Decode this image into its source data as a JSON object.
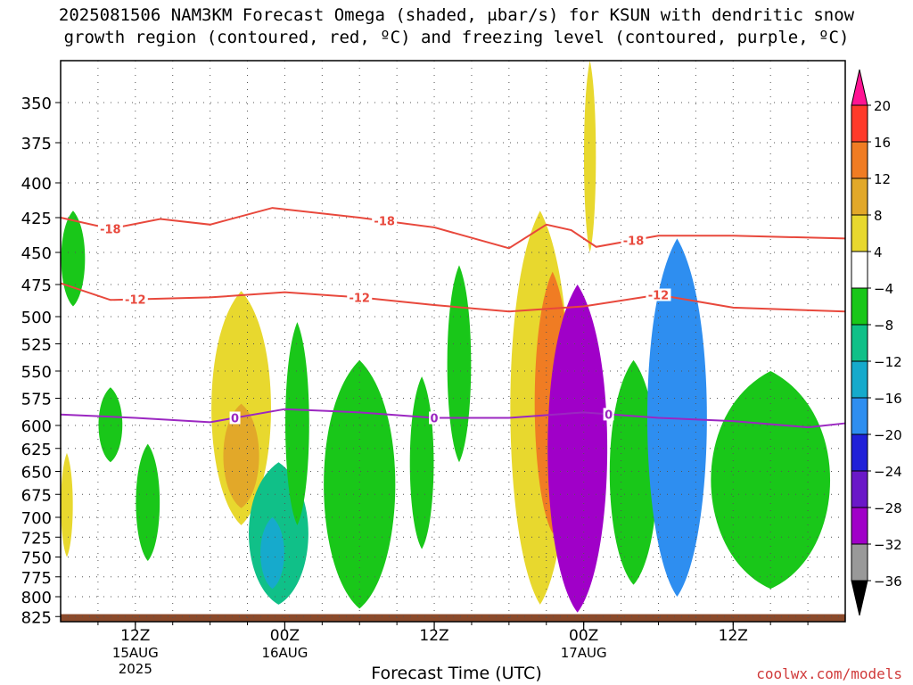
{
  "header": {
    "title_line1": "2025081506 NAM3KM Forecast Omega (shaded, μbar/s) for KSUN with dendritic snow",
    "title_line2": "growth region (contoured, red, ºC) and freezing level (contoured, purple, ºC)"
  },
  "footer": {
    "xlabel": "Forecast Time (UTC)",
    "credit": "coolwx.com/models"
  },
  "chart_data": {
    "type": "heatmap",
    "y_axis": {
      "quantity": "pressure (hPa)",
      "ticks": [
        350,
        375,
        400,
        425,
        450,
        475,
        500,
        525,
        550,
        575,
        600,
        625,
        650,
        675,
        700,
        725,
        750,
        775,
        800,
        825
      ],
      "range": [
        322,
        830
      ],
      "inverted": true
    },
    "x_axis": {
      "range_hours_utc": [
        "2025-08-15 06Z",
        "2025-08-17 21Z"
      ],
      "ticks": [
        {
          "label": "12Z",
          "sub": [
            "15AUG",
            "2025"
          ],
          "time": "2025-08-15 12Z"
        },
        {
          "label": "00Z",
          "sub": [
            "16AUG"
          ],
          "time": "2025-08-16 00Z"
        },
        {
          "label": "12Z",
          "sub": [],
          "time": "2025-08-16 12Z"
        },
        {
          "label": "00Z",
          "sub": [
            "17AUG"
          ],
          "time": "2025-08-17 00Z"
        },
        {
          "label": "12Z",
          "sub": [],
          "time": "2025-08-17 12Z"
        }
      ]
    },
    "grid": true,
    "colorbar": {
      "levels": [
        "20",
        "16",
        "12",
        "8",
        "4",
        "−4",
        "−8",
        "−12",
        "−16",
        "−20",
        "−24",
        "−28",
        "−32",
        "−36"
      ],
      "colors": [
        "#ff1493",
        "#ff3a2a",
        "#f07c23",
        "#e2a829",
        "#e8d82e",
        "#ffffff",
        "#19c719",
        "#10c088",
        "#16aacc",
        "#2e8ef0",
        "#2020d8",
        "#6a18c8",
        "#a000c8",
        "#999999",
        "#000000"
      ]
    },
    "omega_regions": [
      {
        "name": "early green",
        "time": [
          "2025-08-15 06Z",
          "2025-08-15 08Z"
        ],
        "p": [
          420,
          492
        ],
        "value": -5
      },
      {
        "name": "early yellow",
        "time": [
          "2025-08-15 06Z",
          "2025-08-15 07Z"
        ],
        "p": [
          630,
          750
        ],
        "value": 5
      },
      {
        "name": "green west 1",
        "time": [
          "2025-08-15 09Z",
          "2025-08-15 11Z"
        ],
        "p": [
          565,
          640
        ],
        "value": -5
      },
      {
        "name": "green west 2",
        "time": [
          "2025-08-15 12Z",
          "2025-08-15 14Z"
        ],
        "p": [
          620,
          755
        ],
        "value": -5
      },
      {
        "name": "yellow ascent 1",
        "time": [
          "2025-08-15 18Z",
          "2025-08-15 23Z"
        ],
        "p": [
          480,
          710
        ],
        "value": 6
      },
      {
        "name": "orange core 1",
        "time": [
          "2025-08-15 19Z",
          "2025-08-15 22Z"
        ],
        "p": [
          580,
          690
        ],
        "value": 10
      },
      {
        "name": "descent 1",
        "time": [
          "2025-08-15 21Z",
          "2025-08-16 02Z"
        ],
        "p": [
          640,
          810
        ],
        "value": -8
      },
      {
        "name": "cyan core 1",
        "time": [
          "2025-08-15 22Z",
          "2025-08-16 00Z"
        ],
        "p": [
          700,
          790
        ],
        "value": -13
      },
      {
        "name": "green tall 1",
        "time": [
          "2025-08-16 00Z",
          "2025-08-16 02Z"
        ],
        "p": [
          505,
          710
        ],
        "value": -5
      },
      {
        "name": "descent 2",
        "time": [
          "2025-08-16 03Z",
          "2025-08-16 09Z"
        ],
        "p": [
          540,
          815
        ],
        "value": -7
      },
      {
        "name": "green 12Z",
        "time": [
          "2025-08-16 10Z",
          "2025-08-16 12Z"
        ],
        "p": [
          555,
          740
        ],
        "value": -5
      },
      {
        "name": "green tall 2",
        "time": [
          "2025-08-16 13Z",
          "2025-08-16 15Z"
        ],
        "p": [
          460,
          640
        ],
        "value": -5
      },
      {
        "name": "yellow ascent 2",
        "time": [
          "2025-08-16 18Z",
          "2025-08-16 23Z"
        ],
        "p": [
          420,
          810
        ],
        "value": 7
      },
      {
        "name": "orange core 2",
        "time": [
          "2025-08-16 20Z",
          "2025-08-16 23Z"
        ],
        "p": [
          465,
          720
        ],
        "value": 12
      },
      {
        "name": "strong descent",
        "time": [
          "2025-08-16 21Z",
          "2025-08-17 02Z"
        ],
        "p": [
          475,
          820
        ],
        "value": -30
      },
      {
        "name": "yellow plume",
        "time": [
          "2025-08-17 00Z",
          "2025-08-17 01Z"
        ],
        "p": [
          322,
          450
        ],
        "value": 5
      },
      {
        "name": "green east",
        "time": [
          "2025-08-17 02Z",
          "2025-08-17 06Z"
        ],
        "p": [
          540,
          785
        ],
        "value": -6
      },
      {
        "name": "blue column",
        "time": [
          "2025-08-17 05Z",
          "2025-08-17 10Z"
        ],
        "p": [
          440,
          800
        ],
        "value": -18
      },
      {
        "name": "green tail",
        "time": [
          "2025-08-17 10Z",
          "2025-08-17 20Z"
        ],
        "p": [
          550,
          790
        ],
        "value": -6
      }
    ],
    "contours": [
      {
        "label": "-18",
        "color": "#e8483c",
        "points": [
          [
            "2025-08-15 06Z",
            425
          ],
          [
            "2025-08-15 10Z",
            433
          ],
          [
            "2025-08-15 14Z",
            426
          ],
          [
            "2025-08-15 18Z",
            430
          ],
          [
            "2025-08-15 23Z",
            418
          ],
          [
            "2025-08-16 06Z",
            425
          ],
          [
            "2025-08-16 12Z",
            432
          ],
          [
            "2025-08-16 18Z",
            447
          ],
          [
            "2025-08-16 21Z",
            430
          ],
          [
            "2025-08-16 23Z",
            434
          ],
          [
            "2025-08-17 01Z",
            446
          ],
          [
            "2025-08-17 06Z",
            438
          ],
          [
            "2025-08-17 12Z",
            438
          ],
          [
            "2025-08-17 21Z",
            440
          ]
        ]
      },
      {
        "label": "-12",
        "color": "#e8483c",
        "points": [
          [
            "2025-08-15 06Z",
            474
          ],
          [
            "2025-08-15 10Z",
            487
          ],
          [
            "2025-08-15 18Z",
            485
          ],
          [
            "2025-08-16 00Z",
            481
          ],
          [
            "2025-08-16 06Z",
            485
          ],
          [
            "2025-08-16 12Z",
            491
          ],
          [
            "2025-08-16 18Z",
            496
          ],
          [
            "2025-08-17 00Z",
            492
          ],
          [
            "2025-08-17 06Z",
            483
          ],
          [
            "2025-08-17 12Z",
            493
          ],
          [
            "2025-08-17 21Z",
            496
          ]
        ]
      },
      {
        "label": "0",
        "color": "#9b27c1",
        "points": [
          [
            "2025-08-15 06Z",
            590
          ],
          [
            "2025-08-15 12Z",
            593
          ],
          [
            "2025-08-15 18Z",
            597
          ],
          [
            "2025-08-16 00Z",
            585
          ],
          [
            "2025-08-16 06Z",
            588
          ],
          [
            "2025-08-16 12Z",
            593
          ],
          [
            "2025-08-16 18Z",
            593
          ],
          [
            "2025-08-17 00Z",
            588
          ],
          [
            "2025-08-17 06Z",
            593
          ],
          [
            "2025-08-17 12Z",
            596
          ],
          [
            "2025-08-17 18Z",
            602
          ],
          [
            "2025-08-17 21Z",
            598
          ]
        ]
      }
    ],
    "contour_labels": [
      {
        "text": "-18",
        "time": "2025-08-15 10Z"
      },
      {
        "text": "-18",
        "time": "2025-08-16 08Z"
      },
      {
        "text": "-18",
        "time": "2025-08-17 04Z"
      },
      {
        "text": "-12",
        "time": "2025-08-15 12Z"
      },
      {
        "text": "-12",
        "time": "2025-08-16 06Z"
      },
      {
        "text": "-12",
        "time": "2025-08-17 06Z"
      },
      {
        "text": "0",
        "time": "2025-08-15 20Z"
      },
      {
        "text": "0",
        "time": "2025-08-16 12Z"
      },
      {
        "text": "0",
        "time": "2025-08-17 02Z"
      }
    ],
    "terrain": {
      "label": "surface",
      "color": "#8b4a2b",
      "p_top": 822
    }
  }
}
